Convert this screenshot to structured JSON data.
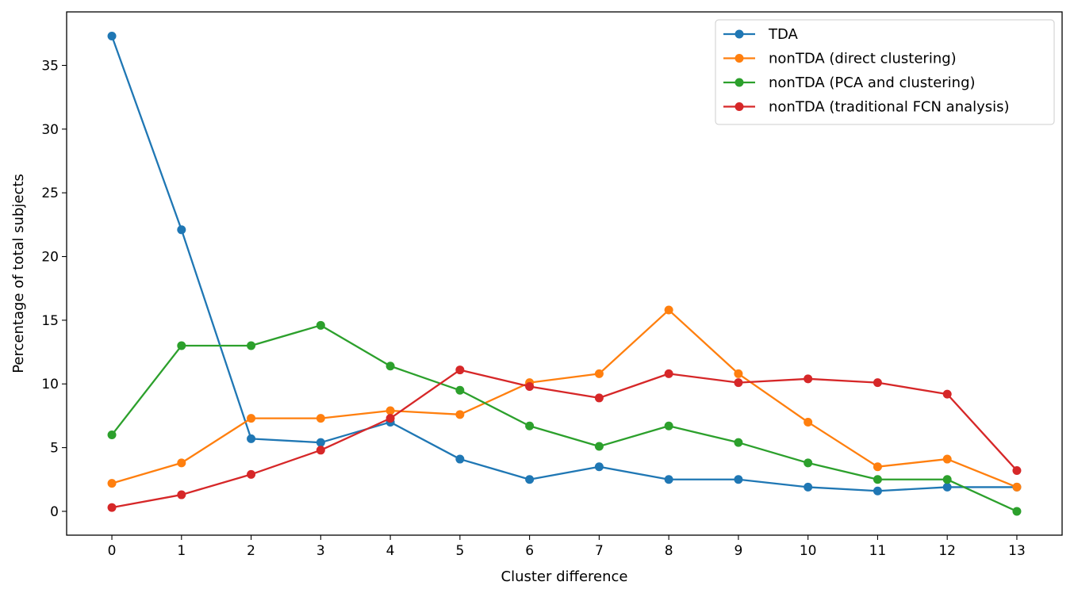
{
  "chart_data": {
    "type": "line",
    "title": "",
    "xlabel": "Cluster difference",
    "ylabel": "Percentage of total subjects",
    "x": [
      0,
      1,
      2,
      3,
      4,
      5,
      6,
      7,
      8,
      9,
      10,
      11,
      12,
      13
    ],
    "xlim": [
      -0.65,
      13.65
    ],
    "ylim": [
      -1.87,
      39.2
    ],
    "xticks": [
      0,
      1,
      2,
      3,
      4,
      5,
      6,
      7,
      8,
      9,
      10,
      11,
      12,
      13
    ],
    "yticks": [
      0,
      5,
      10,
      15,
      20,
      25,
      30,
      35
    ],
    "grid": false,
    "legend_position": "top-right",
    "series": [
      {
        "name": "TDA",
        "color": "#1f77b4",
        "values": [
          37.3,
          22.1,
          5.7,
          5.4,
          7.0,
          4.1,
          2.5,
          3.5,
          2.5,
          2.5,
          1.9,
          1.6,
          1.9,
          1.9
        ]
      },
      {
        "name": "nonTDA (direct clustering)",
        "color": "#ff7f0e",
        "values": [
          2.2,
          3.8,
          7.3,
          7.3,
          7.9,
          7.6,
          10.1,
          10.8,
          15.8,
          10.8,
          7.0,
          3.5,
          4.1,
          1.9
        ]
      },
      {
        "name": "nonTDA (PCA and clustering)",
        "color": "#2ca02c",
        "values": [
          6.0,
          13.0,
          13.0,
          14.6,
          11.4,
          9.5,
          6.7,
          5.1,
          6.7,
          5.4,
          3.8,
          2.5,
          2.5,
          0.0
        ]
      },
      {
        "name": "nonTDA (traditional FCN analysis)",
        "color": "#d62728",
        "values": [
          0.3,
          1.3,
          2.9,
          4.8,
          7.3,
          11.1,
          9.8,
          8.9,
          10.8,
          10.1,
          10.4,
          10.1,
          9.2,
          3.2
        ]
      }
    ]
  }
}
